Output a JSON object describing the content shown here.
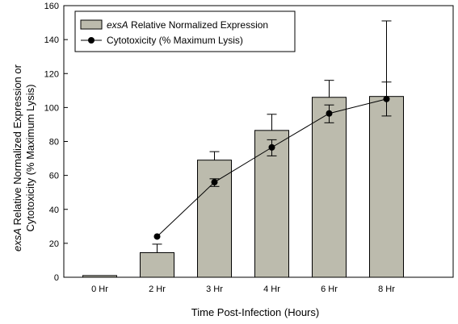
{
  "chart_data": {
    "type": "bar",
    "xlabel": "Time Post-Infection (Hours)",
    "ylabel_parts": {
      "italic": "exsA",
      "line1_rest": " Relative Normalized Expression or",
      "line2": "Cytotoxicity (% Maximum Lysis)"
    },
    "ylim": [
      0,
      160
    ],
    "yticks": [
      0,
      20,
      40,
      60,
      80,
      100,
      120,
      140,
      160
    ],
    "categories": [
      "0 Hr",
      "2 Hr",
      "3 Hr",
      "4 Hr",
      "6 Hr",
      "8 Hr"
    ],
    "legend_position": "top-left",
    "colors": {
      "bar": "#bcbbad",
      "line": "#000000"
    },
    "series": [
      {
        "name_parts": {
          "italic": "exsA",
          "rest": " Relative Normalized Expression"
        },
        "type": "bar",
        "values": [
          1,
          14.5,
          69,
          86.5,
          106,
          106.5
        ],
        "error_upper": [
          null,
          5,
          5,
          9.5,
          10,
          44.5
        ]
      },
      {
        "name": "Cytotoxicity (% Maximum Lysis)",
        "type": "line",
        "values": [
          null,
          24,
          56,
          76.5,
          96.5,
          105
        ],
        "error_upper": [
          null,
          null,
          2,
          4.5,
          5,
          10
        ],
        "error_lower": [
          null,
          null,
          2.5,
          5,
          5.5,
          10
        ]
      }
    ]
  }
}
